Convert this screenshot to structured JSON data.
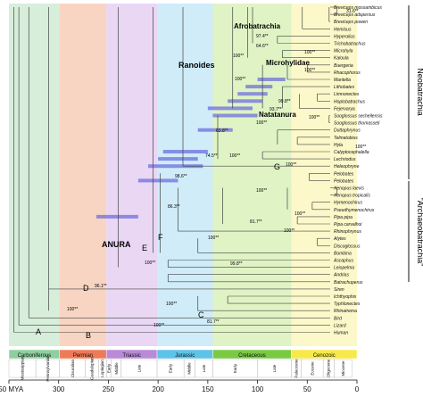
{
  "axis": {
    "unit_label": "350 MYA",
    "ticks": [
      {
        "value": 350,
        "label": "350 MYA"
      },
      {
        "value": 300,
        "label": "300"
      },
      {
        "value": 250,
        "label": "250"
      },
      {
        "value": 200,
        "label": "200"
      },
      {
        "value": 150,
        "label": "150"
      },
      {
        "value": 100,
        "label": "100"
      },
      {
        "value": 50,
        "label": "50"
      },
      {
        "value": 0,
        "label": "0"
      }
    ]
  },
  "periods": [
    {
      "name": "Carboniferous",
      "start": 359,
      "end": 299,
      "color": "#8fcf9f",
      "band": "#c9e8cf"
    },
    {
      "name": "Permian",
      "start": 299,
      "end": 252,
      "color": "#ee7b58",
      "band": "#f6c5ad"
    },
    {
      "name": "Triassic",
      "start": 252,
      "end": 201,
      "color": "#b98ad8",
      "band": "#e2c9f0"
    },
    {
      "name": "Jurassic",
      "start": 201,
      "end": 145,
      "color": "#5dc3e8",
      "band": "#bfe6f6"
    },
    {
      "name": "Cretaceous",
      "start": 145,
      "end": 66,
      "color": "#7ac943",
      "band": "#d6efb2"
    },
    {
      "name": "Cenozoic",
      "start": 66,
      "end": 0,
      "color": "#f7e94a",
      "band": "#fbf5b8"
    }
  ],
  "epochs": [
    {
      "name": "Mississippian",
      "start": 359,
      "end": 323
    },
    {
      "name": "Pennsylvanian",
      "start": 323,
      "end": 299
    },
    {
      "name": "Cisuralian",
      "start": 299,
      "end": 273
    },
    {
      "name": "Guadalupian",
      "start": 273,
      "end": 260
    },
    {
      "name": "Lopingian",
      "start": 260,
      "end": 252
    },
    {
      "name": "Early",
      "start": 252,
      "end": 247
    },
    {
      "name": "Middle",
      "start": 247,
      "end": 237
    },
    {
      "name": "Late",
      "start": 237,
      "end": 201
    },
    {
      "name": "Early",
      "start": 201,
      "end": 174
    },
    {
      "name": "Middle",
      "start": 174,
      "end": 163
    },
    {
      "name": "Late",
      "start": 163,
      "end": 145
    },
    {
      "name": "Early",
      "start": 145,
      "end": 100
    },
    {
      "name": "Late",
      "start": 100,
      "end": 66
    },
    {
      "name": "Paleocene",
      "start": 66,
      "end": 56
    },
    {
      "name": "Eocene",
      "start": 56,
      "end": 34
    },
    {
      "name": "Oligocene",
      "start": 34,
      "end": 23
    },
    {
      "name": "Miocene",
      "start": 23,
      "end": 5
    }
  ],
  "taxa": [
    "Breviceps mossambicus",
    "Breviceps adspersus",
    "Breviceps poweri",
    "Hemisus",
    "Hyperolius",
    "Trichobatrachus",
    "Microhyla",
    "Kaloula",
    "Buergeria",
    "Rhacophorus",
    "Mantella",
    "Lithobates",
    "Limnonectes",
    "Hoplobatrachus",
    "Fejervarya",
    "Sooglossus sechellensis",
    "Sooglossus thomasseti",
    "Duttaphrynus",
    "Telmatobius",
    "Hyla",
    "Calyptocephalella",
    "Lechriodus",
    "Heleophryne",
    "Pelobates",
    "Pelobates",
    "Xenopus laevis",
    "Xenopus tropicalis",
    "Hymenochirus",
    "Pseudhymenochirus",
    "Pipa pipa",
    "Pipa carvalhoi",
    "Rhinophrynus",
    "Alytes",
    "Discoglossus",
    "Bombina",
    "Ascaphus",
    "Leiopelma",
    "Andrias",
    "Batrachuperus",
    "Siren",
    "Ichthyophis",
    "Typhlonectes",
    "Rhinatrema",
    "Bird",
    "Lizard",
    "Human"
  ],
  "node_letters": [
    {
      "text": "A"
    },
    {
      "text": "B"
    },
    {
      "text": "C"
    },
    {
      "text": "D"
    },
    {
      "text": "E"
    },
    {
      "text": "F"
    },
    {
      "text": "G"
    }
  ],
  "support_labels": [
    "31.6**",
    "97.4**",
    "64.6**",
    "100**",
    "100**",
    "100**",
    "99.8**",
    "100**",
    "93.7**",
    "100**",
    "63.8**",
    "100**",
    "74.5**",
    "100**",
    "100**",
    "100**",
    "98.6**",
    "100**",
    "86.3**",
    "100**",
    "81.7**",
    "100**",
    "100**",
    "99.8**",
    "100**",
    "96.1**",
    "100**",
    "100**",
    "81.7**",
    "100**"
  ],
  "clade_labels": {
    "afrobatrachia": "Afrobatrachia",
    "microhylidae": "Microhylidae",
    "ranoides": "Ranoides",
    "natatanura": "Natatanura",
    "anura": "ANURA"
  },
  "side_labels": {
    "neobatrachia": "Neobatrachia",
    "archaeobatrachia": "\"Archaeobatrachia\""
  },
  "colors": {
    "bar": "#6666dd",
    "branch": "#444444",
    "text": "#111111"
  }
}
